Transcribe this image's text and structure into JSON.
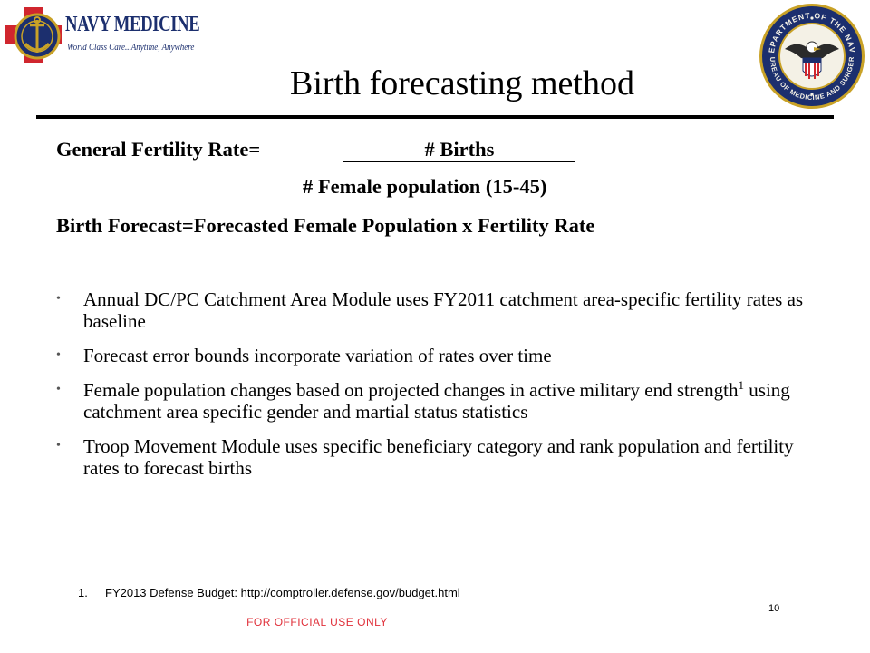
{
  "logo": {
    "main_text": "NAVY MEDICINE",
    "sub_text": "World Class Care...Anytime, Anywhere",
    "colors": {
      "navy": "#1c2f6e",
      "red": "#d0262e",
      "gold": "#c9a227"
    }
  },
  "seal": {
    "top_text": "DEPARTMENT OF THE NAVY",
    "bottom_text": "BUREAU OF MEDICINE AND SURGERY",
    "colors": {
      "navy": "#1c2f6e",
      "gold": "#c9a227"
    }
  },
  "title": "Birth forecasting method",
  "formula": {
    "gfr_label": "General Fertility Rate=",
    "numerator": "# Births",
    "denominator": "# Female population (15-45)",
    "forecast_line": "Birth Forecast=Forecasted Female Population x Fertility Rate"
  },
  "bullets": [
    {
      "text": "Annual DC/PC Catchment Area Module uses FY2011 catchment area-specific fertility rates as baseline"
    },
    {
      "text": "Forecast error bounds incorporate variation of rates over time"
    },
    {
      "pre": "Female population changes based on projected changes in active military end strength",
      "sup": "1",
      "post": " using catchment area specific gender and martial status statistics"
    },
    {
      "text": "Troop Movement Module uses specific beneficiary category and rank population and fertility rates to forecast births"
    }
  ],
  "footnote": {
    "number": "1.",
    "text": "FY2013 Defense Budget: http://comptroller.defense.gov/budget.html"
  },
  "page_number": "10",
  "classification": "FOR OFFICIAL USE ONLY",
  "colors": {
    "classification": "#e0303a",
    "text": "#000000"
  }
}
